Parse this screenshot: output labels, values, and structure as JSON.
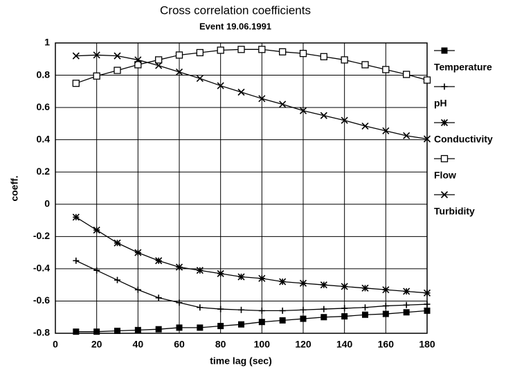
{
  "chart_data": {
    "type": "line",
    "title": "Cross correlation coefficients",
    "subtitle": "Event 19.06.1991",
    "xlabel": "time lag (sec)",
    "ylabel": "coeff.",
    "x": [
      10,
      20,
      30,
      40,
      50,
      60,
      70,
      80,
      90,
      100,
      110,
      120,
      130,
      140,
      150,
      160,
      170,
      180
    ],
    "series": [
      {
        "name": "Temperature",
        "color": "#000000",
        "marker": "filled-square",
        "values": [
          -0.79,
          -0.79,
          -0.785,
          -0.78,
          -0.775,
          -0.765,
          -0.765,
          -0.755,
          -0.745,
          -0.73,
          -0.72,
          -0.71,
          -0.7,
          -0.695,
          -0.685,
          -0.68,
          -0.67,
          -0.66
        ]
      },
      {
        "name": "pH",
        "color": "#000000",
        "marker": "plus",
        "values": [
          -0.35,
          -0.41,
          -0.47,
          -0.53,
          -0.58,
          -0.61,
          -0.64,
          -0.65,
          -0.655,
          -0.66,
          -0.66,
          -0.655,
          -0.65,
          -0.645,
          -0.64,
          -0.63,
          -0.625,
          -0.62
        ]
      },
      {
        "name": "Conductivity",
        "color": "#000000",
        "marker": "asterisk",
        "values": [
          -0.08,
          -0.16,
          -0.24,
          -0.3,
          -0.35,
          -0.39,
          -0.41,
          -0.43,
          -0.45,
          -0.46,
          -0.48,
          -0.49,
          -0.5,
          -0.51,
          -0.52,
          -0.53,
          -0.54,
          -0.55
        ]
      },
      {
        "name": "Flow",
        "color": "#000000",
        "marker": "open-square",
        "values": [
          0.75,
          0.795,
          0.83,
          0.865,
          0.895,
          0.925,
          0.94,
          0.955,
          0.96,
          0.96,
          0.945,
          0.935,
          0.915,
          0.895,
          0.865,
          0.835,
          0.805,
          0.77
        ]
      },
      {
        "name": "Turbidity",
        "color": "#000000",
        "marker": "cross",
        "values": [
          0.92,
          0.925,
          0.92,
          0.895,
          0.86,
          0.82,
          0.78,
          0.735,
          0.695,
          0.655,
          0.62,
          0.58,
          0.55,
          0.52,
          0.485,
          0.455,
          0.425,
          0.405
        ]
      }
    ],
    "xlim": [
      0,
      180
    ],
    "xticks": [
      0,
      20,
      40,
      60,
      80,
      100,
      120,
      140,
      160,
      180
    ],
    "ylim": [
      -0.8,
      1
    ],
    "yticks": [
      -0.8,
      -0.6,
      -0.4,
      -0.2,
      0,
      0.2,
      0.4,
      0.6,
      0.8,
      1
    ],
    "grid": true,
    "legend": "right"
  }
}
